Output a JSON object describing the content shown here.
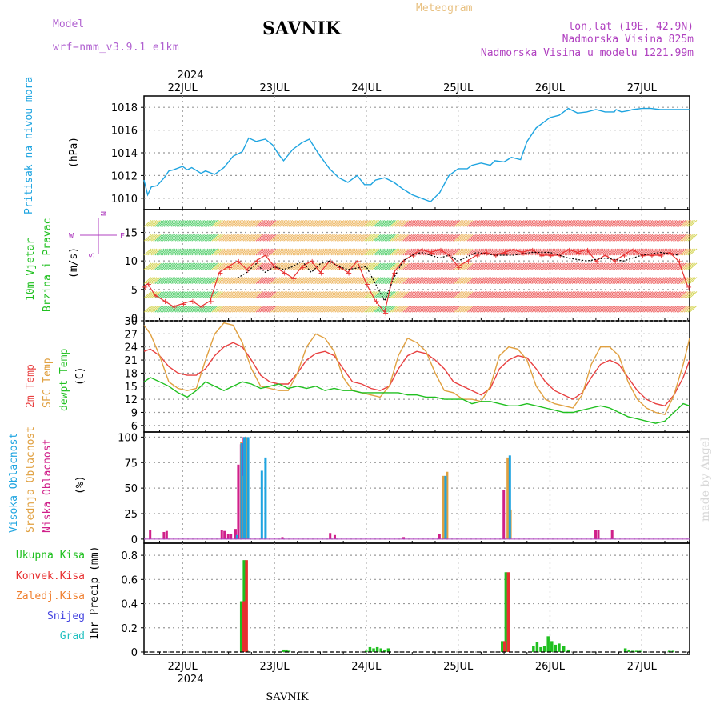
{
  "header": {
    "title": "SAVNIK",
    "meteogram": "Meteogram",
    "model_label": "Model",
    "model_name": "wrf−nmm_v3.9.1  e1km",
    "lonlat": "lon,lat (19E, 42.9N)",
    "elevation": "Nadmorska Visina 825m",
    "model_elevation": "Nadmorska Visina u modelu 1221.99m",
    "year": "2024",
    "footer_station": "SAVNIK",
    "watermark": "made by Angel"
  },
  "colors": {
    "pressure": "#1ea4e0",
    "t2m": "#e84040",
    "tsfc": "#e0a040",
    "dewpt": "#20c020",
    "wind_dir": "#000000",
    "wind_speed": "#e83030",
    "cloud_high": "#1ea4e0",
    "cloud_mid": "#e0a040",
    "cloud_low": "#d0208a",
    "precip_total": "#20c020",
    "precip_conv": "#e83030",
    "precip_frozen": "#f08030",
    "snow": "#4040e0",
    "hail": "#20c0c0"
  },
  "chart_data": [
    {
      "type": "line",
      "panel": "pressure",
      "ylabel": [
        "Pritisak na nivou mora",
        "(hPa)"
      ],
      "ylim": [
        1009,
        1019
      ],
      "yticks": [
        1010,
        1012,
        1014,
        1016,
        1018
      ],
      "x_unit": "days from 2024-07-21 00:00",
      "xlim": [
        0.58,
        6.52
      ],
      "x_tick_labels": [
        "22JUL",
        "23JUL",
        "24JUL",
        "25JUL",
        "26JUL",
        "27JUL"
      ],
      "series": [
        {
          "key": "pressure",
          "x": [
            0.58,
            0.62,
            0.66,
            0.72,
            0.8,
            0.85,
            0.9,
            1.0,
            1.05,
            1.1,
            1.2,
            1.25,
            1.35,
            1.45,
            1.55,
            1.65,
            1.72,
            1.8,
            1.9,
            1.98,
            2.05,
            2.1,
            2.2,
            2.3,
            2.38,
            2.45,
            2.5,
            2.6,
            2.7,
            2.8,
            2.9,
            2.98,
            3.05,
            3.1,
            3.2,
            3.3,
            3.4,
            3.5,
            3.6,
            3.7,
            3.8,
            3.9,
            4.0,
            4.1,
            4.15,
            4.25,
            4.35,
            4.4,
            4.5,
            4.58,
            4.68,
            4.75,
            4.85,
            5.0,
            5.1,
            5.2,
            5.3,
            5.4,
            5.5,
            5.6,
            5.7,
            5.72,
            5.78,
            5.85,
            5.9,
            6.0,
            6.05,
            6.1,
            6.2,
            6.25,
            6.3,
            6.35,
            6.4,
            6.45,
            6.52
          ],
          "y": [
            1011.6,
            1010.3,
            1011.0,
            1011.1,
            1011.8,
            1012.4,
            1012.5,
            1012.8,
            1012.5,
            1012.7,
            1012.2,
            1012.4,
            1012.1,
            1012.7,
            1013.7,
            1014.1,
            1015.3,
            1015.0,
            1015.2,
            1014.7,
            1013.8,
            1013.3,
            1014.3,
            1014.9,
            1015.2,
            1014.3,
            1013.7,
            1012.6,
            1011.8,
            1011.4,
            1012.0,
            1011.2,
            1011.2,
            1011.6,
            1011.8,
            1011.4,
            1010.8,
            1010.3,
            1010.0,
            1009.7,
            1010.5,
            1012.0,
            1012.6,
            1012.6,
            1012.9,
            1013.1,
            1012.9,
            1013.3,
            1013.2,
            1013.6,
            1013.4,
            1015.0,
            1016.2,
            1017.1,
            1017.3,
            1017.9,
            1017.5,
            1017.6,
            1017.8,
            1017.6,
            1017.6,
            1017.8,
            1017.6,
            1017.7,
            1017.8,
            1017.9,
            1017.9,
            1017.9,
            1017.8,
            1017.8,
            1017.8,
            1017.8,
            1017.8,
            1017.8,
            1017.8
          ]
        }
      ]
    },
    {
      "type": "line",
      "panel": "wind",
      "ylabel": [
        "10m Vjetar",
        "Brzina i Pravac",
        "(m/s)"
      ],
      "direction_legend": {
        "w": "W",
        "e": "E",
        "n": "N",
        "s": "S"
      },
      "ylim": [
        -0.5,
        19
      ],
      "yticks": [
        0,
        5,
        10,
        15
      ],
      "series": [
        {
          "key": "wind_speed",
          "x": [
            0.58,
            0.62,
            0.7,
            0.8,
            0.9,
            1.0,
            1.1,
            1.2,
            1.3,
            1.4,
            1.5,
            1.6,
            1.7,
            1.8,
            1.9,
            2.0,
            2.1,
            2.2,
            2.3,
            2.4,
            2.5,
            2.6,
            2.7,
            2.8,
            2.9,
            3.0,
            3.1,
            3.2,
            3.3,
            3.4,
            3.5,
            3.6,
            3.7,
            3.8,
            3.9,
            4.0,
            4.1,
            4.2,
            4.3,
            4.4,
            4.5,
            4.6,
            4.7,
            4.8,
            4.9,
            5.0,
            5.1,
            5.2,
            5.3,
            5.4,
            5.5,
            5.6,
            5.7,
            5.8,
            5.9,
            6.0,
            6.1,
            6.2,
            6.3,
            6.4,
            6.5
          ],
          "y": [
            5.5,
            6,
            4,
            3,
            2,
            2.5,
            3,
            2,
            3,
            8,
            9,
            10,
            8.5,
            10,
            11,
            9,
            8,
            7,
            9,
            10,
            8,
            10,
            9,
            8,
            10,
            6,
            3,
            1,
            8,
            10,
            11,
            12,
            11.5,
            12,
            11,
            9,
            10,
            11,
            11.5,
            11,
            11.5,
            12,
            11.5,
            12,
            11,
            11,
            11,
            12,
            11.5,
            12,
            10,
            11,
            10,
            11,
            12,
            11,
            11,
            11,
            11.5,
            10,
            5.5
          ]
        },
        {
          "key": "wind_dir",
          "x": [
            1.6,
            1.7,
            1.8,
            1.9,
            2.0,
            2.1,
            2.2,
            2.3,
            2.4,
            2.5,
            2.6,
            2.7,
            2.8,
            3.0,
            3.1,
            3.2,
            3.3,
            3.4,
            3.5,
            3.6,
            3.7,
            3.8,
            3.9,
            4.0,
            4.2,
            4.4,
            4.6,
            4.8,
            5.0,
            5.2,
            5.4,
            5.6,
            5.8,
            6.0,
            6.2,
            6.4
          ],
          "y": [
            7,
            8,
            9.5,
            8,
            9,
            8.5,
            9,
            10,
            8,
            9.5,
            10,
            9,
            8.5,
            9,
            6,
            3,
            7,
            10,
            11,
            11.5,
            11,
            10.5,
            11,
            10,
            11.5,
            11,
            11,
            11.5,
            11.5,
            10.5,
            10,
            10.5,
            10,
            11,
            11.5,
            11
          ]
        }
      ]
    },
    {
      "type": "line",
      "panel": "temperature",
      "ylabel": [
        "2m Temp",
        "SFC Temp",
        "dewpt Temp",
        "(C)"
      ],
      "ylim": [
        4.5,
        30
      ],
      "yticks": [
        6,
        9,
        12,
        15,
        18,
        21,
        24,
        27,
        30
      ],
      "series": [
        {
          "key": "t2m",
          "name": "2m Temp",
          "x": [
            0.58,
            0.65,
            0.75,
            0.85,
            0.95,
            1.05,
            1.15,
            1.25,
            1.35,
            1.45,
            1.55,
            1.65,
            1.75,
            1.85,
            1.95,
            2.05,
            2.15,
            2.25,
            2.35,
            2.45,
            2.55,
            2.65,
            2.75,
            2.85,
            2.95,
            3.05,
            3.15,
            3.25,
            3.35,
            3.45,
            3.55,
            3.65,
            3.75,
            3.85,
            3.95,
            4.05,
            4.15,
            4.25,
            4.35,
            4.45,
            4.55,
            4.65,
            4.75,
            4.85,
            4.95,
            5.05,
            5.15,
            5.25,
            5.35,
            5.45,
            5.55,
            5.65,
            5.75,
            5.85,
            5.95,
            6.05,
            6.15,
            6.25,
            6.35,
            6.45,
            6.52
          ],
          "y": [
            23,
            23.5,
            22,
            19.5,
            18,
            17.5,
            17.5,
            19,
            22,
            24,
            25,
            24,
            21,
            17.5,
            16,
            15.5,
            15.5,
            18,
            21,
            22.5,
            23,
            22,
            19,
            16,
            15.5,
            14.5,
            14,
            15,
            19,
            22,
            23,
            22.5,
            21,
            19,
            16,
            15,
            14,
            13,
            14.5,
            19,
            21,
            22,
            21.5,
            19,
            16,
            14,
            13,
            12,
            13.5,
            17,
            20,
            21,
            20,
            17,
            14,
            12,
            11,
            10.5,
            13,
            17,
            21
          ]
        },
        {
          "key": "tsfc",
          "name": "SFC Temp",
          "x": [
            0.58,
            0.65,
            0.75,
            0.85,
            0.95,
            1.05,
            1.15,
            1.25,
            1.35,
            1.45,
            1.55,
            1.65,
            1.75,
            1.85,
            1.95,
            2.05,
            2.15,
            2.25,
            2.35,
            2.45,
            2.55,
            2.65,
            2.75,
            2.85,
            2.95,
            3.05,
            3.15,
            3.25,
            3.35,
            3.45,
            3.55,
            3.65,
            3.75,
            3.85,
            3.95,
            4.05,
            4.15,
            4.25,
            4.35,
            4.45,
            4.55,
            4.65,
            4.75,
            4.85,
            4.95,
            5.05,
            5.15,
            5.25,
            5.35,
            5.45,
            5.55,
            5.65,
            5.75,
            5.85,
            5.95,
            6.05,
            6.15,
            6.25,
            6.35,
            6.45,
            6.52
          ],
          "y": [
            29,
            27,
            22,
            16,
            14.5,
            14,
            14.5,
            21,
            27,
            29.5,
            29,
            25,
            19,
            15,
            14.5,
            14,
            14,
            18,
            24,
            27,
            26,
            23,
            17,
            14,
            13.5,
            13,
            12.5,
            15,
            22,
            26,
            25,
            23,
            18,
            14,
            13.5,
            12,
            12,
            11.5,
            15,
            22,
            24,
            23.5,
            21,
            15,
            12,
            11,
            10.5,
            10,
            13,
            20,
            24,
            24,
            22,
            16,
            12,
            10,
            9,
            8.5,
            13,
            20,
            26
          ]
        },
        {
          "key": "dewpt",
          "name": "dewpt Temp",
          "x": [
            0.58,
            0.65,
            0.75,
            0.85,
            0.95,
            1.05,
            1.15,
            1.25,
            1.35,
            1.45,
            1.55,
            1.65,
            1.75,
            1.85,
            1.95,
            2.05,
            2.15,
            2.25,
            2.35,
            2.45,
            2.55,
            2.65,
            2.75,
            2.85,
            2.95,
            3.05,
            3.15,
            3.25,
            3.35,
            3.45,
            3.55,
            3.65,
            3.75,
            3.85,
            3.95,
            4.05,
            4.15,
            4.25,
            4.35,
            4.45,
            4.55,
            4.65,
            4.75,
            4.85,
            4.95,
            5.05,
            5.15,
            5.25,
            5.35,
            5.45,
            5.55,
            5.65,
            5.75,
            5.85,
            5.95,
            6.05,
            6.15,
            6.25,
            6.35,
            6.45,
            6.52
          ],
          "y": [
            16,
            17,
            16,
            15,
            13.5,
            12.5,
            14,
            16,
            15,
            14,
            15,
            16,
            15.5,
            14.5,
            15,
            15.5,
            14.5,
            15,
            14.5,
            15,
            14,
            14.5,
            14,
            14,
            13.5,
            13.5,
            13.5,
            13.5,
            13.5,
            13,
            13,
            12.5,
            12.5,
            12,
            12,
            12,
            11,
            11.5,
            11.5,
            11,
            10.5,
            10.5,
            11,
            10.5,
            10,
            9.5,
            9,
            9,
            9.5,
            10,
            10.5,
            10,
            9,
            8,
            7.5,
            7,
            6.5,
            7,
            9,
            11,
            10.5
          ]
        }
      ]
    },
    {
      "type": "bar",
      "panel": "cloud",
      "ylabel": [
        "Visoka Oblacnost",
        "Srednja Oblacnost",
        "Niska Oblacnost",
        "(%)"
      ],
      "ylim": [
        -4,
        105
      ],
      "yticks": [
        0,
        25,
        50,
        75,
        100
      ],
      "series": [
        {
          "key": "cloud_low",
          "x": [
            0.66,
            0.81,
            0.84,
            1.44,
            1.47,
            1.51,
            1.54,
            1.59,
            1.62,
            1.65,
            1.68,
            2.1,
            2.62,
            2.67,
            3.42,
            3.81,
            4.51,
            5.51,
            5.54,
            5.69
          ],
          "y": [
            9,
            7,
            8,
            9,
            8,
            5,
            5,
            10,
            73,
            93,
            100,
            2,
            6,
            4,
            2,
            5,
            48,
            9,
            9,
            9
          ]
        },
        {
          "key": "cloud_mid",
          "x": [
            1.64,
            1.67,
            1.69,
            3.84,
            3.88,
            4.54,
            4.57
          ],
          "y": [
            95,
            62,
            100,
            62,
            66,
            80,
            29
          ]
        },
        {
          "key": "cloud_high",
          "x": [
            1.58,
            1.63,
            1.66,
            1.7,
            1.85,
            1.89,
            3.85,
            4.55
          ],
          "y": [
            4,
            94,
            100,
            100,
            67,
            80,
            62,
            82
          ]
        }
      ]
    },
    {
      "type": "bar",
      "panel": "precip",
      "ylabel": [
        "1hr Precip (mm)"
      ],
      "legend": [
        "Ukupna Kisa",
        "Konvek.Kisa",
        "Zaledj.Kisa",
        "Snijeg",
        "Grad"
      ],
      "ylim": [
        -0.02,
        0.9
      ],
      "yticks": [
        0,
        0.2,
        0.4,
        0.6,
        0.8
      ],
      "series": [
        {
          "key": "precip_total",
          "x": [
            1.64,
            1.67,
            1.7,
            2.1,
            2.13,
            2.16,
            3.0,
            3.04,
            3.08,
            3.12,
            3.16,
            3.2,
            3.24,
            4.48,
            4.52,
            4.55,
            4.82,
            4.86,
            4.9,
            4.94,
            4.98,
            5.02,
            5.06,
            5.1,
            5.15,
            5.2,
            5.82,
            5.86,
            5.9,
            5.94,
            5.98,
            6.3,
            6.34
          ],
          "y": [
            0.42,
            0.76,
            0.02,
            0.02,
            0.02,
            0.01,
            0.01,
            0.04,
            0.03,
            0.04,
            0.03,
            0.02,
            0.03,
            0.09,
            0.66,
            0.09,
            0.05,
            0.08,
            0.04,
            0.05,
            0.13,
            0.09,
            0.06,
            0.07,
            0.05,
            0.02,
            0.03,
            0.02,
            0.01,
            0.01,
            0.01,
            0.01,
            0.01
          ]
        },
        {
          "key": "precip_conv",
          "x": [
            1.64,
            1.67,
            4.48,
            4.52
          ],
          "y": [
            0.42,
            0.76,
            0.09,
            0.66
          ]
        }
      ]
    }
  ]
}
